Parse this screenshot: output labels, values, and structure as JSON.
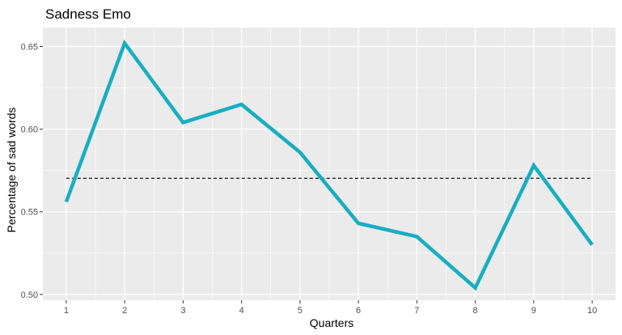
{
  "chart_data": {
    "type": "line",
    "title": "Sadness Emo",
    "xlabel": "Quarters",
    "ylabel": "Percentage of sad words",
    "x": [
      1,
      2,
      3,
      4,
      5,
      6,
      7,
      8,
      9,
      10
    ],
    "x_tick_labels": [
      "1",
      "2",
      "3",
      "4",
      "5",
      "6",
      "7",
      "8",
      "9",
      "10"
    ],
    "y": [
      0.556,
      0.652,
      0.604,
      0.615,
      0.586,
      0.543,
      0.535,
      0.504,
      0.578,
      0.53
    ],
    "y_tick_values": [
      0.5,
      0.55,
      0.6,
      0.65
    ],
    "y_tick_labels": [
      "0.50",
      "0.55",
      "0.60",
      "0.65"
    ],
    "xlim": [
      0.6,
      10.4
    ],
    "ylim": [
      0.4965,
      0.6615
    ],
    "reference_line": {
      "y": 0.5703,
      "style": "dashed",
      "color": "#000000"
    },
    "line_color": "#17AEC1",
    "panel_background": "#EBEBEB",
    "grid": true,
    "legend": "none"
  }
}
